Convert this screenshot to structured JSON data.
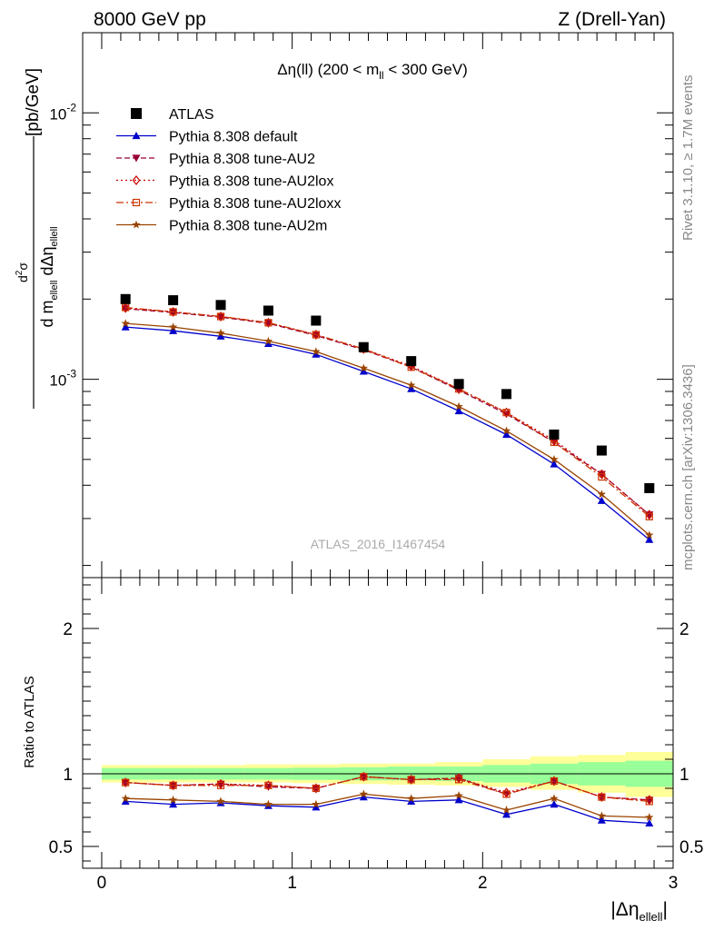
{
  "header": {
    "left": "8000 GeV pp",
    "right": "Z (Drell-Yan)"
  },
  "side": {
    "rivet": "Rivet 3.1.10, ≥ 1.7M events",
    "mcplots": "mcplots.cern.ch [arXiv:1306.3436]"
  },
  "chart_data": [
    {
      "type": "scatter",
      "panel": "main",
      "title": "Δη(ll) (200 < m_ll < 300 GeV)",
      "ylabel": "d²σ / d m_ellell dΔη_ellell [pb/GeV]",
      "yscale": "log",
      "ylim": [
        0.00018,
        0.02
      ],
      "xlim": [
        -0.1,
        3.0
      ],
      "ytick_labels": [
        "10^-3",
        "10^-2"
      ],
      "watermark": "ATLAS_2016_I1467454",
      "legend_position": "top-left",
      "x": [
        0.125,
        0.375,
        0.625,
        0.875,
        1.125,
        1.375,
        1.625,
        1.875,
        2.125,
        2.375,
        2.625,
        2.875
      ],
      "series": [
        {
          "name": "ATLAS",
          "color": "#000000",
          "marker": "square",
          "values": [
            0.002,
            0.00198,
            0.0019,
            0.00181,
            0.00166,
            0.00132,
            0.00117,
            0.00096,
            0.00088,
            0.00062,
            0.00054,
            0.00039
          ]
        },
        {
          "name": "Pythia 8.308 default",
          "color": "#0000cc",
          "marker": "triangle-up",
          "line": "solid",
          "values": [
            0.00157,
            0.00152,
            0.00145,
            0.00136,
            0.00124,
            0.00107,
            0.00092,
            0.00076,
            0.00062,
            0.00048,
            0.00035,
            0.00025
          ]
        },
        {
          "name": "Pythia 8.308 tune-AU2",
          "color": "#990033",
          "marker": "triangle-down",
          "line": "dashed",
          "values": [
            0.00184,
            0.00178,
            0.00171,
            0.00162,
            0.00146,
            0.00129,
            0.00111,
            0.00091,
            0.00074,
            0.00058,
            0.00044,
            0.00031
          ]
        },
        {
          "name": "Pythia 8.308 tune-AU2lox",
          "color": "#cc0000",
          "marker": "diamond-open",
          "line": "dotted",
          "values": [
            0.00185,
            0.00179,
            0.00172,
            0.00163,
            0.00147,
            0.0013,
            0.00112,
            0.00092,
            0.00075,
            0.00059,
            0.00044,
            0.00031
          ]
        },
        {
          "name": "Pythia 8.308 tune-AU2loxx",
          "color": "#cc3300",
          "marker": "square-open",
          "line": "dashdot",
          "values": [
            0.00186,
            0.00179,
            0.00172,
            0.00163,
            0.00147,
            0.0013,
            0.00111,
            0.00092,
            0.00075,
            0.00058,
            0.00043,
            0.000305
          ]
        },
        {
          "name": "Pythia 8.308 tune-AU2m",
          "color": "#994400",
          "marker": "star",
          "line": "solid",
          "values": [
            0.00162,
            0.00157,
            0.00149,
            0.00139,
            0.00127,
            0.0011,
            0.00095,
            0.00079,
            0.00064,
            0.0005,
            0.00037,
            0.00026
          ]
        }
      ]
    },
    {
      "type": "line",
      "panel": "ratio",
      "ylabel": "Ratio to ATLAS",
      "xlabel": "|Δη_ellell|",
      "ylim": [
        0.35,
        2.35
      ],
      "xlim": [
        -0.1,
        3.0
      ],
      "yticks": [
        0.5,
        1,
        2
      ],
      "ytick_labels": [
        "0.5",
        "1",
        "2"
      ],
      "xticks": [
        0,
        1,
        2,
        3
      ],
      "xtick_labels": [
        "0",
        "1",
        "2",
        "3"
      ],
      "bands": {
        "yellow": [
          [
            0.94,
            1.06
          ],
          [
            0.94,
            1.06
          ],
          [
            0.94,
            1.06
          ],
          [
            0.94,
            1.065
          ],
          [
            0.935,
            1.065
          ],
          [
            0.93,
            1.07
          ],
          [
            0.925,
            1.07
          ],
          [
            0.92,
            1.08
          ],
          [
            0.91,
            1.1
          ],
          [
            0.89,
            1.12
          ],
          [
            0.87,
            1.13
          ],
          [
            0.84,
            1.15
          ]
        ],
        "green": [
          [
            0.96,
            1.04
          ],
          [
            0.96,
            1.04
          ],
          [
            0.96,
            1.04
          ],
          [
            0.96,
            1.04
          ],
          [
            0.958,
            1.042
          ],
          [
            0.955,
            1.045
          ],
          [
            0.955,
            1.05
          ],
          [
            0.95,
            1.05
          ],
          [
            0.94,
            1.06
          ],
          [
            0.93,
            1.07
          ],
          [
            0.92,
            1.08
          ],
          [
            0.91,
            1.09
          ]
        ]
      },
      "series": [
        {
          "name": "Pythia 8.308 default",
          "color": "#0000cc",
          "marker": "triangle-up",
          "values": [
            0.81,
            0.79,
            0.8,
            0.78,
            0.77,
            0.84,
            0.81,
            0.82,
            0.72,
            0.79,
            0.68,
            0.66
          ]
        },
        {
          "name": "Pythia 8.308 tune-AU2",
          "color": "#990033",
          "marker": "triangle-down",
          "values": [
            0.94,
            0.92,
            0.93,
            0.91,
            0.9,
            0.98,
            0.96,
            0.97,
            0.86,
            0.95,
            0.84,
            0.82
          ]
        },
        {
          "name": "Pythia 8.308 tune-AU2lox",
          "color": "#cc0000",
          "marker": "diamond-open",
          "values": [
            0.94,
            0.92,
            0.93,
            0.92,
            0.9,
            0.98,
            0.96,
            0.97,
            0.87,
            0.95,
            0.84,
            0.82
          ]
        },
        {
          "name": "Pythia 8.308 tune-AU2loxx",
          "color": "#cc3300",
          "marker": "square-open",
          "values": [
            0.94,
            0.92,
            0.92,
            0.92,
            0.9,
            0.98,
            0.96,
            0.96,
            0.86,
            0.95,
            0.84,
            0.81
          ]
        },
        {
          "name": "Pythia 8.308 tune-AU2m",
          "color": "#994400",
          "marker": "star",
          "values": [
            0.83,
            0.82,
            0.81,
            0.79,
            0.79,
            0.86,
            0.83,
            0.85,
            0.75,
            0.83,
            0.71,
            0.7
          ]
        }
      ]
    }
  ]
}
